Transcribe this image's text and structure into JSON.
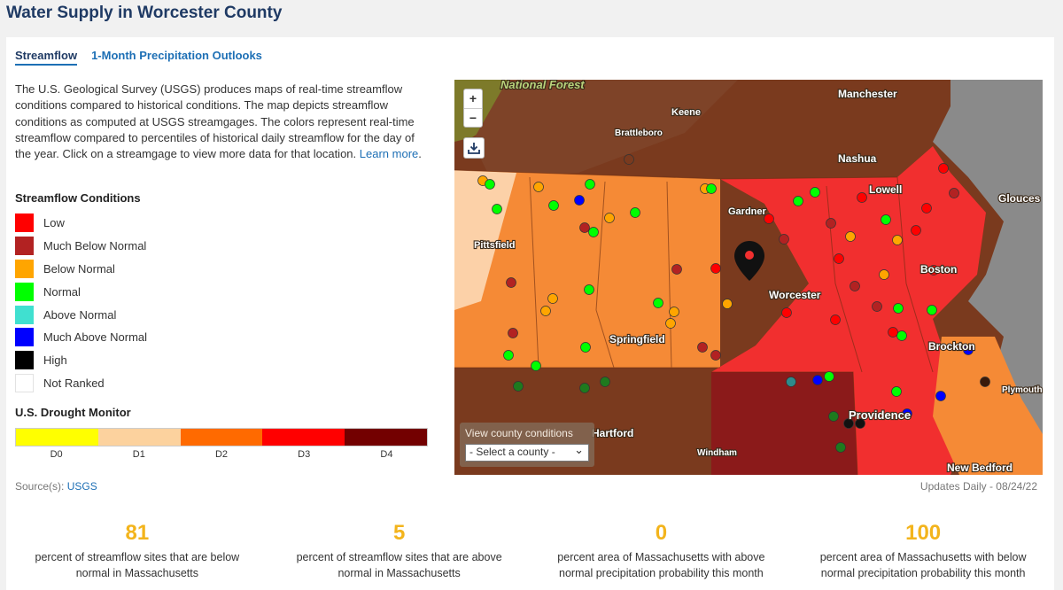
{
  "page_title": "Water Supply in Worcester County",
  "tabs": [
    {
      "label": "Streamflow"
    },
    {
      "label": "1-Month Precipitation Outlooks"
    }
  ],
  "description": "The U.S. Geological Survey (USGS) produces maps of real-time streamflow conditions compared to historical conditions. The map depicts streamflow conditions as computed at USGS streamgages. The colors represent real-time streamflow compared to percentiles of historical daily streamflow for the day of the year. Click on a streamgage to view more data for that location.",
  "learn_more": "Learn more",
  "streamflow_legend": {
    "title": "Streamflow Conditions",
    "items": [
      {
        "label": "Low",
        "color": "#ff0000"
      },
      {
        "label": "Much Below Normal",
        "color": "#b22222"
      },
      {
        "label": "Below Normal",
        "color": "#ffa500"
      },
      {
        "label": "Normal",
        "color": "#00ff00"
      },
      {
        "label": "Above Normal",
        "color": "#40e0d0"
      },
      {
        "label": "Much Above Normal",
        "color": "#0000ff"
      },
      {
        "label": "High",
        "color": "#000000"
      },
      {
        "label": "Not Ranked",
        "color": "#ffffff"
      }
    ]
  },
  "drought_monitor": {
    "title": "U.S. Drought Monitor",
    "levels": [
      {
        "label": "D0",
        "color": "#ffff00"
      },
      {
        "label": "D1",
        "color": "#fcd29e"
      },
      {
        "label": "D2",
        "color": "#ff6a00"
      },
      {
        "label": "D3",
        "color": "#ff0000"
      },
      {
        "label": "D4",
        "color": "#730000"
      }
    ]
  },
  "source_label": "Source(s):",
  "source_link": "USGS",
  "updates": "Updates Daily  -  08/24/22",
  "map": {
    "zoom_in": "+",
    "zoom_out": "−",
    "places": {
      "national_forest": "National Forest",
      "manchester": "Manchester",
      "keene": "Keene",
      "brattleboro": "Brattleboro",
      "nashua": "Nashua",
      "lowell": "Lowell",
      "gloucester": "Glouces",
      "gardner": "Gardner",
      "pittsfield": "Pittsfield",
      "boston": "Boston",
      "worcester": "Worcester",
      "springfield": "Springfield",
      "brockton": "Brockton",
      "plymouth": "Plymouth",
      "hartford": "Hartford",
      "providence": "Providence",
      "windham": "Windham",
      "new_bedford": "New Bedford"
    },
    "county_control": {
      "title": "View county conditions",
      "selected": "- Select a county -"
    }
  },
  "stats": [
    {
      "value": "81",
      "text": "percent of streamflow sites that are below normal in Massachusetts"
    },
    {
      "value": "5",
      "text": "percent of streamflow sites that are above normal in Massachusetts"
    },
    {
      "value": "0",
      "text": "percent area of Massachusetts with above normal precipitation probability this month"
    },
    {
      "value": "100",
      "text": "percent area of Massachusetts with below normal precipitation probability this month"
    }
  ]
}
